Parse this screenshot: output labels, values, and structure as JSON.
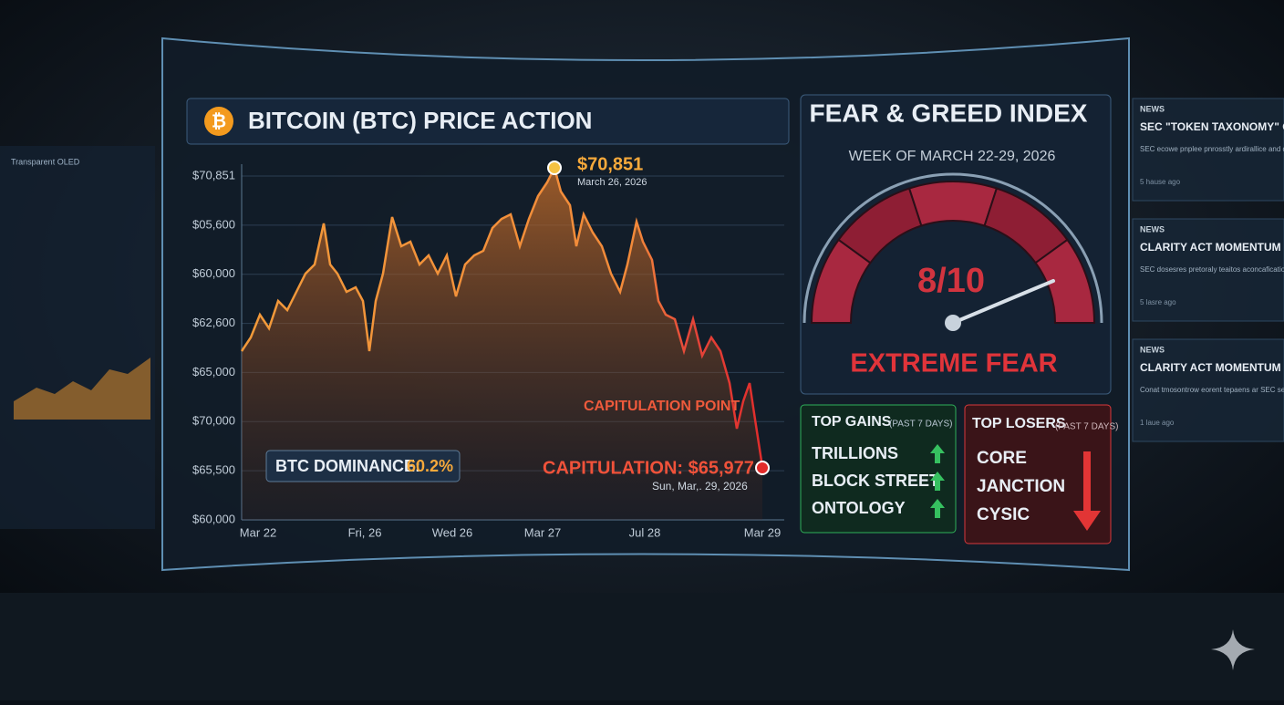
{
  "price_panel": {
    "title": "BITCOIN (BTC) PRICE ACTION",
    "y_labels": [
      "$70,851",
      "$05,600",
      "$60,000",
      "$62,600",
      "$65,000",
      "$70,000",
      "$65,500",
      "$60,000"
    ],
    "x_labels": [
      "Mar 22",
      "Fri, 26",
      "Wed 26",
      "Mar 27",
      "Jul 28",
      "Mar 29"
    ],
    "peak": {
      "price": "$70,851",
      "date": "March 26, 2026"
    },
    "capitulation_point": "CAPITULATION POINT",
    "capitulation": {
      "text": "CAPITULATION: $65,977",
      "date": "Sun, Mar,. 29, 2026"
    },
    "dominance": {
      "label": "BTC DOMINANCE:",
      "value": "60.2%"
    }
  },
  "gauge_panel": {
    "title": "FEAR & GREED INDEX",
    "subtitle": "WEEK OF MARCH 22-29, 2026",
    "score": "8/10",
    "status": "EXTREME FEAR"
  },
  "top_gains": {
    "title": "TOP GAINS",
    "period": "(PAST 7 DAYS)",
    "items": [
      "TRILLIONS",
      "BLOCK STREET",
      "ONTOLOGY"
    ]
  },
  "top_losers": {
    "title": "TOP LOSERS",
    "period": "(PAST 7 DAYS)",
    "items": [
      "CORE",
      "JANCTION",
      "CYSIC"
    ]
  },
  "news": [
    {
      "tag": "NEWS",
      "headline": "SEC \"TOKEN TAXONOMY\" GUIDELINES",
      "body": "SEC ecowe pnplee pnrosstly ardirallice and deecaene is tesionay to tee ovien'eock.",
      "time": "5 hause ago"
    },
    {
      "tag": "NEWS",
      "headline": "CLARITY ACT MOMENTUM",
      "body": "SEC dosesres pretoraly teaitos aconcafication tesaplecess the \"Nisssion Taxonomy\" guidelines.",
      "time": "5 lasre ago"
    },
    {
      "tag": "NEWS",
      "headline": "CLARITY ACT MOMENTUM",
      "body": "Conat tmosontrow eorent tepaens ar SEC sevioting bet to clarity at momentum.",
      "time": "1 laue ago"
    }
  ],
  "left_panel": {
    "title": "Transparent OLED"
  }
}
